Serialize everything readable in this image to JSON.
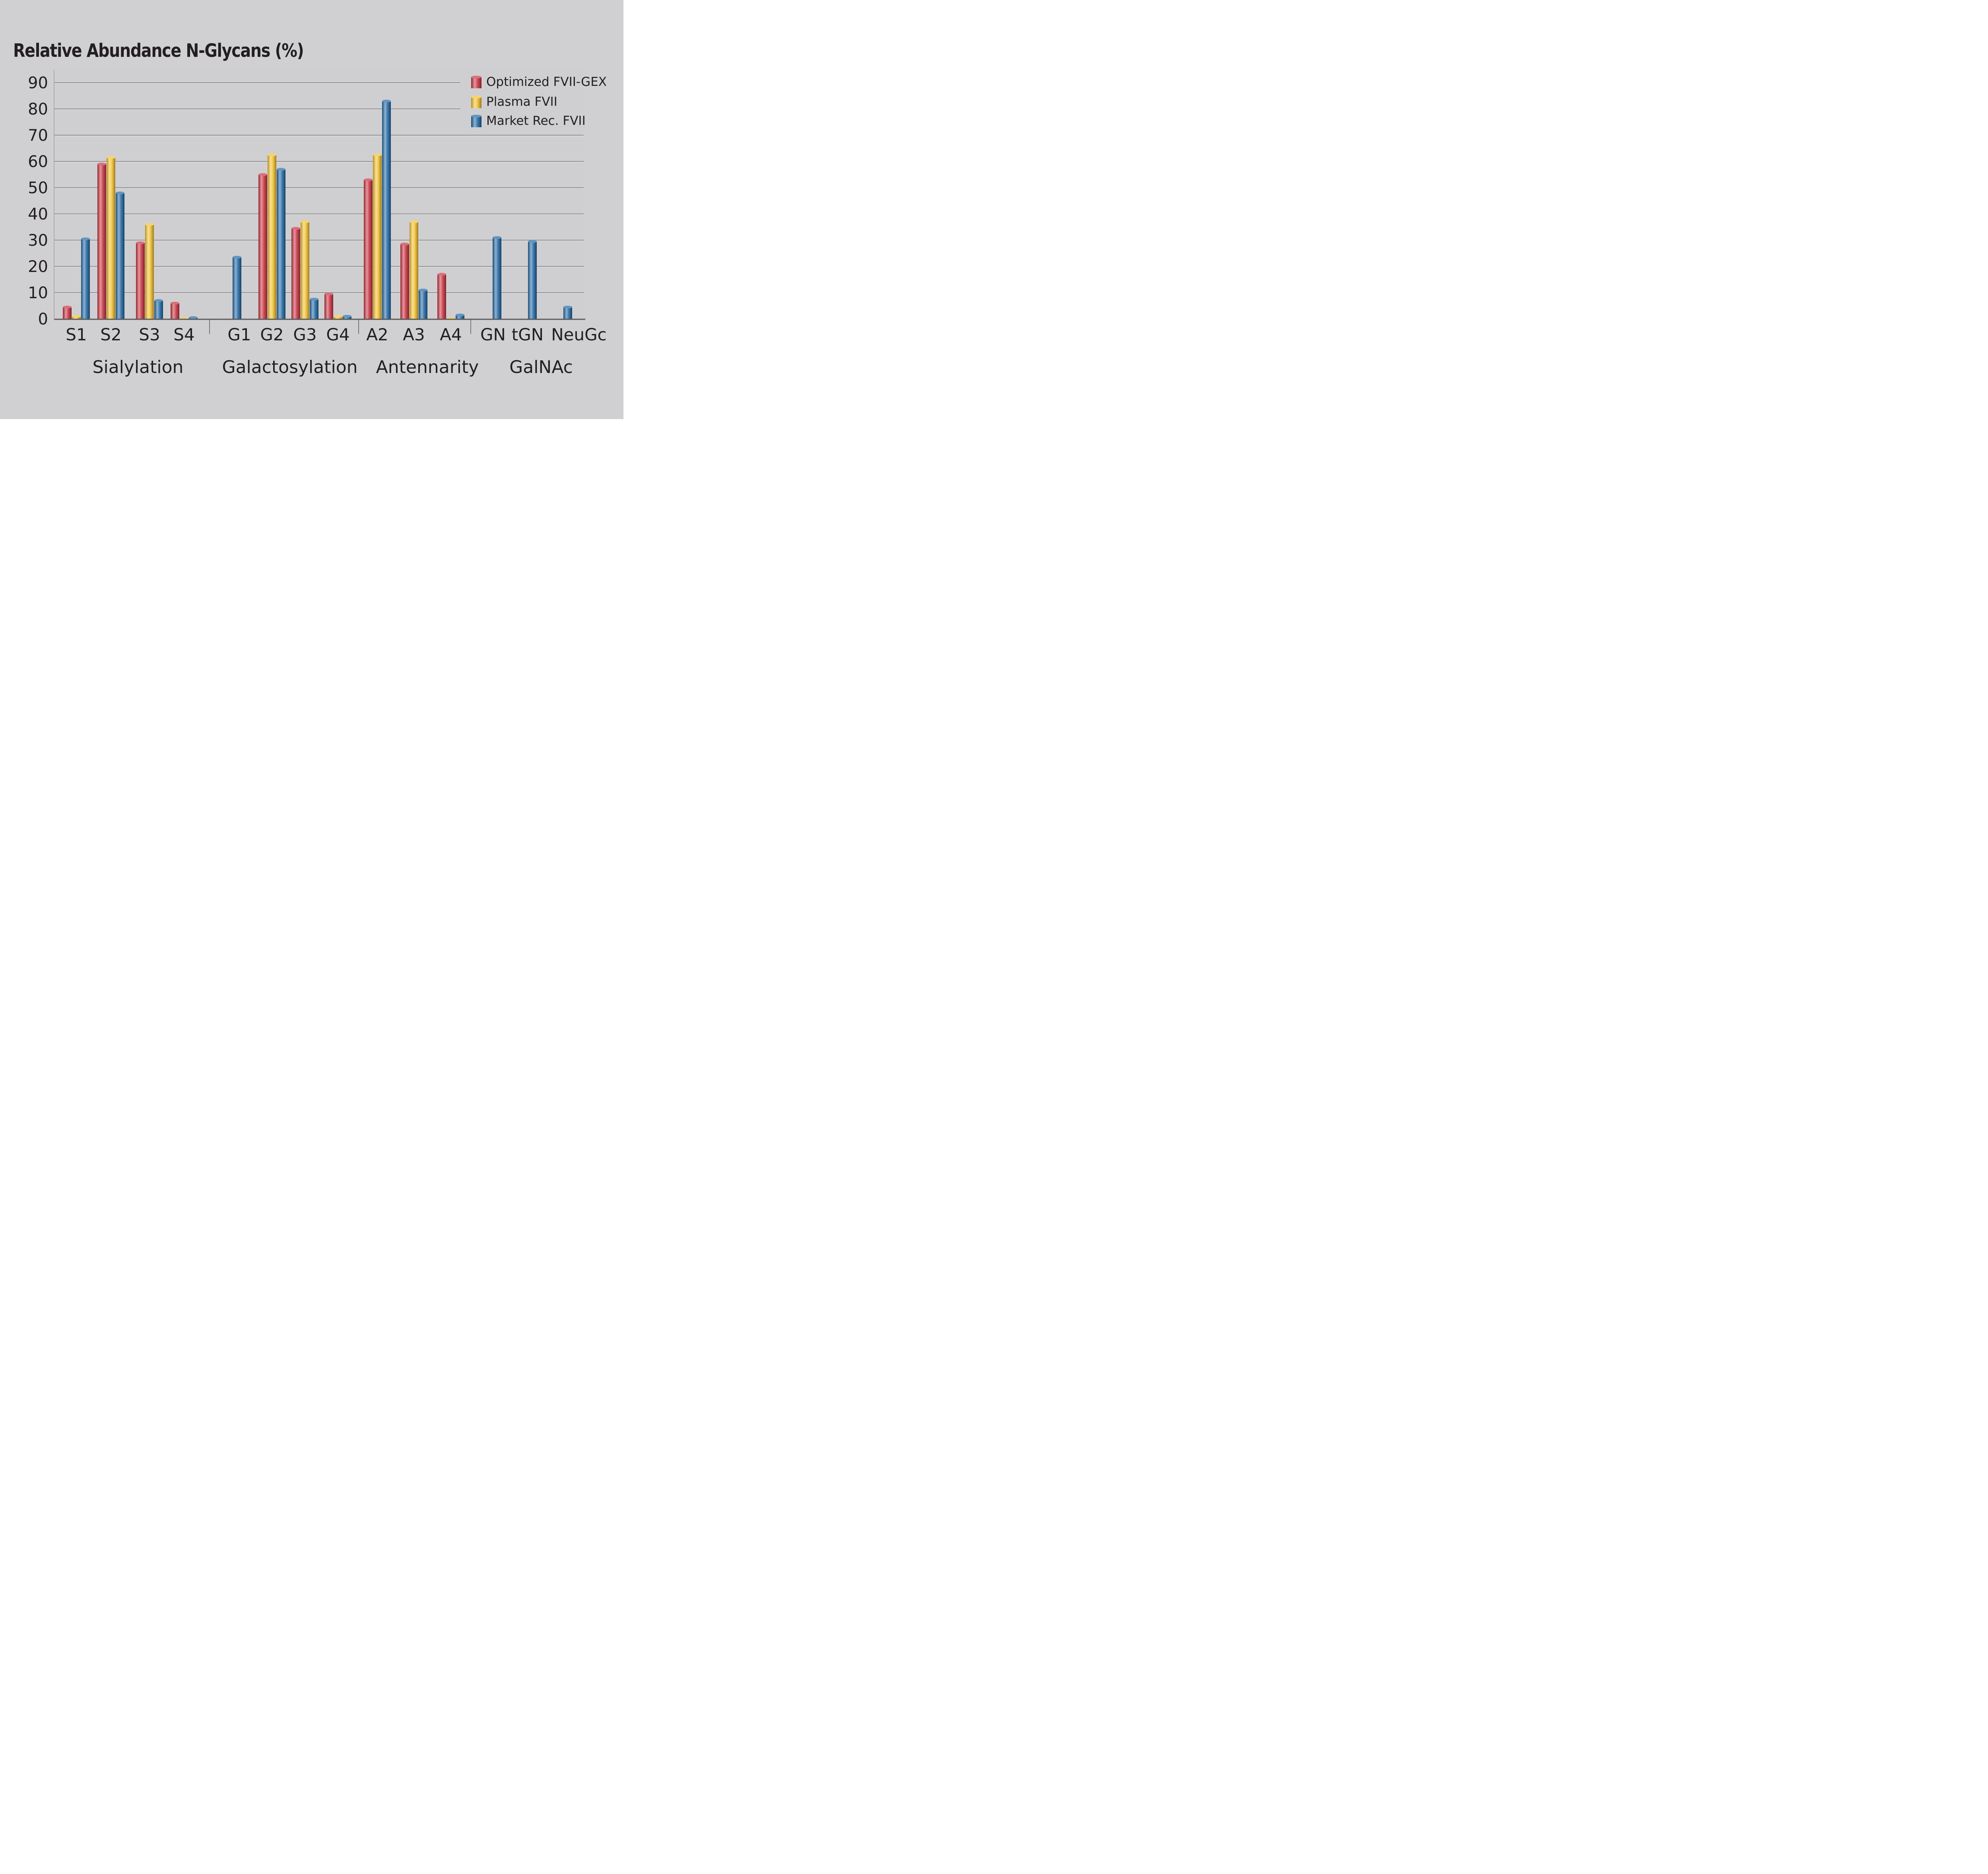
{
  "chart_data": {
    "type": "bar",
    "title": "Relative Abundance N-Glycans (%)",
    "xlabel": "",
    "ylabel": "",
    "ylim": [
      0,
      90
    ],
    "yticks": [
      0,
      10,
      20,
      30,
      40,
      50,
      60,
      70,
      80,
      90
    ],
    "grid": true,
    "legend_position": "top-right",
    "categories": [
      "S1",
      "S2",
      "S3",
      "S4",
      "G1",
      "G2",
      "G3",
      "G4",
      "A2",
      "A3",
      "A4",
      "GN",
      "tGN",
      "NeuGc"
    ],
    "groups": [
      {
        "name": "Sialylation",
        "categories": [
          "S1",
          "S2",
          "S3",
          "S4"
        ]
      },
      {
        "name": "Galactosylation",
        "categories": [
          "G1",
          "G2",
          "G3",
          "G4"
        ]
      },
      {
        "name": "Antennarity",
        "categories": [
          "A2",
          "A3",
          "A4"
        ]
      },
      {
        "name": "GalNAc",
        "categories": [
          "GN",
          "tGN",
          "NeuGc"
        ]
      }
    ],
    "series": [
      {
        "name": "Optimized FVII-GEX",
        "color": "#c8313f",
        "values": [
          4.5,
          59,
          29,
          6,
          null,
          55,
          34.5,
          9.5,
          53,
          28.5,
          17,
          null,
          null,
          null
        ]
      },
      {
        "name": "Plasma FVII",
        "color": "#f2c12e",
        "values": [
          1,
          61.5,
          36,
          0.2,
          null,
          62.5,
          37,
          1,
          62.5,
          37,
          0.1,
          null,
          null,
          null
        ]
      },
      {
        "name": "Market Rec. FVII",
        "color": "#1f67a3",
        "values": [
          30.5,
          48,
          7,
          0.5,
          23.5,
          57,
          7.5,
          1,
          83,
          11,
          1.5,
          31,
          29.5,
          4.5
        ]
      }
    ]
  }
}
